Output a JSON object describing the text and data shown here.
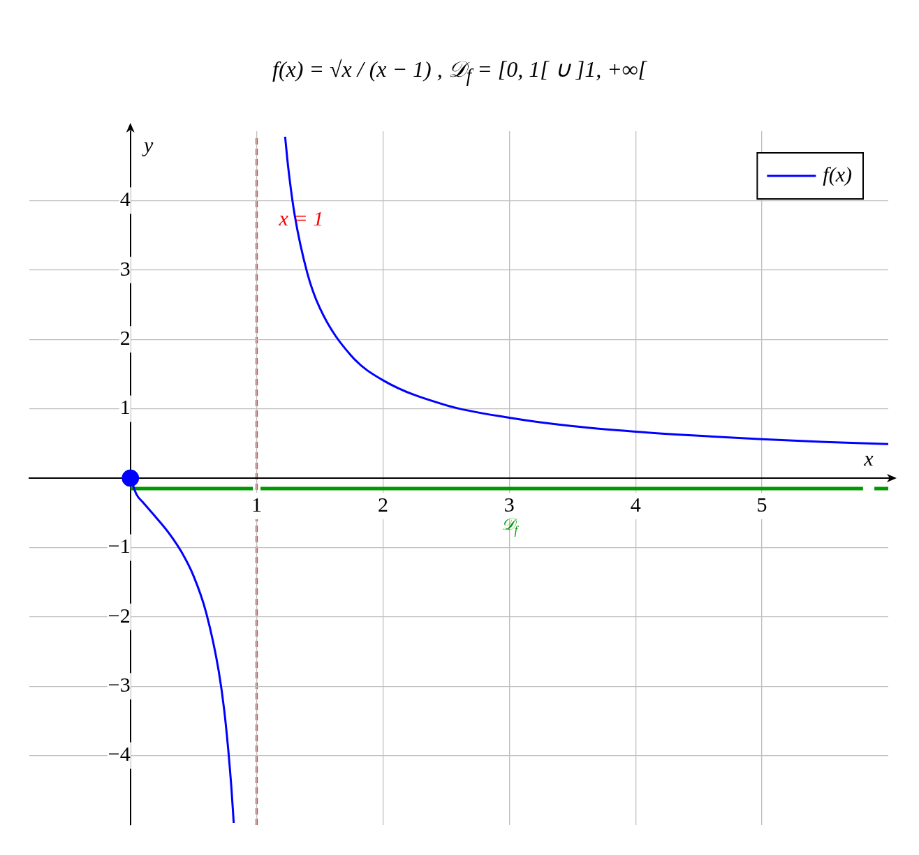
{
  "chart_data": {
    "type": "line",
    "title": "f(x) = √x / (x − 1) ,   𝒟$_{f}$ = [0, 1[ ∪ ]1, +∞[",
    "xlabel": "x",
    "ylabel": "y",
    "xlim": [
      -0.8,
      6
    ],
    "ylim": [
      -5,
      5
    ],
    "xticks": [
      1,
      2,
      3,
      4,
      5
    ],
    "yticks": [
      -4,
      -3,
      -2,
      -1,
      1,
      2,
      3,
      4
    ],
    "grid": true,
    "legend": "top right",
    "series": [
      {
        "name": "f(x)",
        "type": "line",
        "color": "#0000ff",
        "marker": "none",
        "line_style": "solid",
        "x": [
          0,
          0.05,
          0.1,
          0.2,
          0.3,
          0.4,
          0.5,
          0.6,
          0.7,
          0.75,
          0.8,
          0.818,
          1,
          1.225,
          1.25,
          1.3,
          1.4,
          1.5,
          1.75,
          2,
          2.5,
          3,
          3.5,
          4,
          4.5,
          5,
          5.5,
          6
        ],
        "values": [
          0,
          -0.24,
          -0.35,
          -0.56,
          -0.78,
          -1.05,
          -1.41,
          -1.94,
          -2.79,
          -3.46,
          -4.47,
          -4.97,
          null,
          4.92,
          4.47,
          3.8,
          2.96,
          2.45,
          1.76,
          1.41,
          1.05,
          0.87,
          0.75,
          0.67,
          0.61,
          0.56,
          0.52,
          0.49
        ]
      },
      {
        "type": "line",
        "color": "#009900",
        "marker": "none",
        "line_style": "solid",
        "x": [
          0,
          0.97,
          1,
          1.03,
          5.8,
          5.85,
          5.89,
          6
        ],
        "values": [
          -0.15,
          -0.15,
          null,
          -0.15,
          -0.15,
          null,
          -0.15,
          -0.15
        ]
      },
      {
        "type": "scatter",
        "color": "#0000ff",
        "marker": "circle",
        "x": [
          0
        ],
        "values": [
          0
        ]
      }
    ],
    "ref_lines": [
      {
        "axis": "x",
        "value": 1,
        "label": "x = 1",
        "color": "#ff0000",
        "line_style": "dashed"
      }
    ],
    "annotations": [
      "𝒟$_{f}$"
    ]
  }
}
